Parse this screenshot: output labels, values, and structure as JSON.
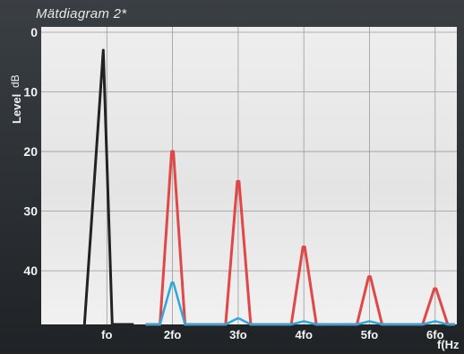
{
  "chart_data": {
    "type": "line",
    "title": "Mätdiagram 2*",
    "ylabel": "Level",
    "yunit": "dB",
    "xlabel": "f(Hz",
    "y_ticks": [
      "0",
      "10",
      "20",
      "30",
      "40"
    ],
    "ylim": [
      0,
      49
    ],
    "y_inverted": true,
    "x_ticks": [
      "fo",
      "2fo",
      "3fo",
      "4fo",
      "5fo",
      "6fo"
    ],
    "xlim": [
      0,
      6.3
    ],
    "grid": true,
    "series": [
      {
        "color": "#222222",
        "x": [
          1
        ],
        "values": [
          3
        ]
      },
      {
        "color": "#e04848",
        "x": [
          2,
          3,
          4,
          5,
          6
        ],
        "values": [
          20,
          25,
          36,
          41,
          43
        ]
      },
      {
        "color": "#2ea8d8",
        "x": [
          2,
          3,
          4,
          5,
          6
        ],
        "values": [
          42,
          48,
          48.5,
          48.5,
          48.5
        ]
      }
    ]
  }
}
